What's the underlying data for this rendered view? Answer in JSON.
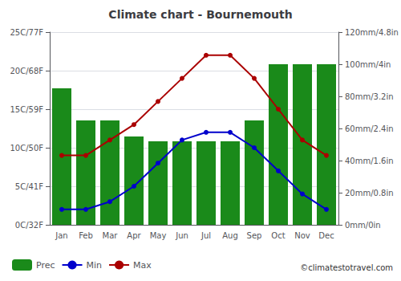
{
  "chart_data": {
    "type": "combo",
    "title": "Climate chart - Bournemouth",
    "categories": [
      "Jan",
      "Feb",
      "Mar",
      "Apr",
      "May",
      "Jun",
      "Jul",
      "Aug",
      "Sep",
      "Oct",
      "Nov",
      "Dec"
    ],
    "series": [
      {
        "name": "Prec",
        "type": "bar",
        "axis": "y2",
        "color": "#1a8a1a",
        "values": [
          85,
          65,
          65,
          55,
          52,
          52,
          52,
          52,
          65,
          100,
          100,
          100
        ]
      },
      {
        "name": "Min",
        "type": "line",
        "color": "#0000cc",
        "marker": "circle",
        "values": [
          2,
          2,
          3,
          5,
          8,
          11,
          12,
          12,
          10,
          7,
          4,
          2
        ]
      },
      {
        "name": "Max",
        "type": "line",
        "color": "#aa0000",
        "marker": "circle",
        "values": [
          9,
          9,
          11,
          13,
          16,
          19,
          22,
          22,
          19,
          15,
          11,
          9
        ]
      }
    ],
    "ylim": [
      0,
      25
    ],
    "yticks": [
      {
        "value": 0,
        "label": "0C/32F"
      },
      {
        "value": 5,
        "label": "5C/41F"
      },
      {
        "value": 10,
        "label": "10C/50F"
      },
      {
        "value": 15,
        "label": "15C/59F"
      },
      {
        "value": 20,
        "label": "20C/68F"
      },
      {
        "value": 25,
        "label": "25C/77F"
      }
    ],
    "y2lim": [
      0,
      120
    ],
    "y2ticks": [
      {
        "value": 0,
        "label": "0mm/0in"
      },
      {
        "value": 20,
        "label": "20mm/0.8in"
      },
      {
        "value": 40,
        "label": "40mm/1.6in"
      },
      {
        "value": 60,
        "label": "60mm/2.4in"
      },
      {
        "value": 80,
        "label": "80mm/3.2in"
      },
      {
        "value": 100,
        "label": "100mm/4in"
      },
      {
        "value": 120,
        "label": "120mm/4.8in"
      }
    ],
    "grid": true,
    "legend": "lower left",
    "annotations": [
      "©climatestotravel.com"
    ]
  }
}
